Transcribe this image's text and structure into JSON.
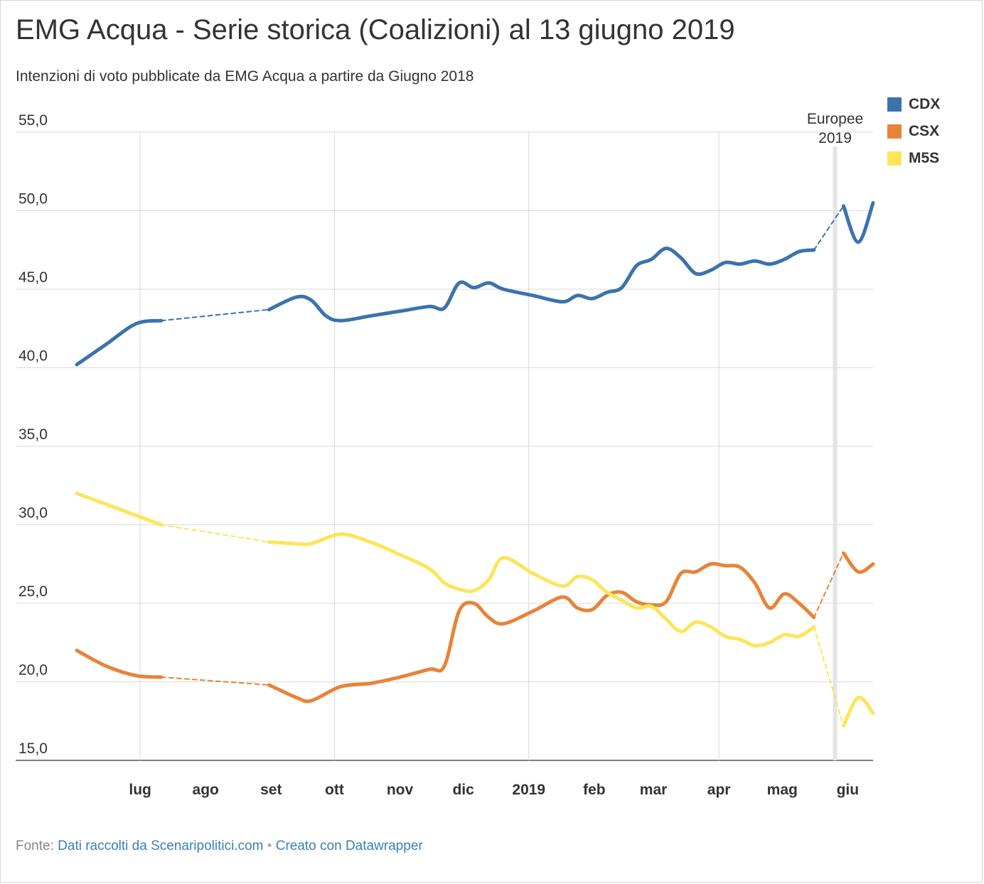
{
  "title": "EMG Acqua - Serie storica (Coalizioni) al 13 giugno 2019",
  "subtitle": "Intenzioni di voto pubblicate da EMG Acqua a partire da Giugno 2018",
  "footer": {
    "prefix": "Fonte: ",
    "source": "Dati raccolti da Scenaripolitici.com",
    "separator": " • ",
    "credit": "Creato con Datawrapper"
  },
  "chart_data": {
    "type": "line",
    "ylim": [
      15,
      55
    ],
    "yticks": [
      15,
      20,
      25,
      30,
      35,
      40,
      45,
      50,
      55
    ],
    "ytick_labels": [
      "15,0",
      "20,0",
      "25,0",
      "30,0",
      "35,0",
      "40,0",
      "45,0",
      "50,0",
      "55,0"
    ],
    "xlim": [
      "2018-06-01",
      "2019-06-13"
    ],
    "xticks": [
      {
        "label": "lug",
        "date": "2018-07-01",
        "gridline": true
      },
      {
        "label": "ago",
        "date": "2018-08-01",
        "gridline": false
      },
      {
        "label": "set",
        "date": "2018-09-01",
        "gridline": false
      },
      {
        "label": "ott",
        "date": "2018-10-01",
        "gridline": true
      },
      {
        "label": "nov",
        "date": "2018-11-01",
        "gridline": false
      },
      {
        "label": "dic",
        "date": "2018-12-01",
        "gridline": false
      },
      {
        "label": "2019",
        "date": "2019-01-01",
        "gridline": true
      },
      {
        "label": "feb",
        "date": "2019-02-01",
        "gridline": false
      },
      {
        "label": "mar",
        "date": "2019-03-01",
        "gridline": false
      },
      {
        "label": "apr",
        "date": "2019-04-01",
        "gridline": true
      },
      {
        "label": "mag",
        "date": "2019-05-01",
        "gridline": false
      },
      {
        "label": "giu",
        "date": "2019-06-01",
        "gridline": false
      }
    ],
    "annotation": {
      "date": "2019-05-26",
      "lines": [
        "Europee",
        "2019"
      ]
    },
    "grid": true,
    "legend": "top-right",
    "series": [
      {
        "name": "CDX",
        "color": "#3a73ae",
        "segments": [
          {
            "style": "solid",
            "points": [
              [
                "2018-06-01",
                40.2
              ],
              [
                "2018-06-15",
                41.5
              ],
              [
                "2018-06-29",
                42.8
              ],
              [
                "2018-07-11",
                43.0
              ]
            ]
          },
          {
            "style": "dashed",
            "points": [
              [
                "2018-07-11",
                43.0
              ],
              [
                "2018-08-31",
                43.7
              ]
            ]
          },
          {
            "style": "solid",
            "points": [
              [
                "2018-08-31",
                43.7
              ],
              [
                "2018-09-13",
                44.5
              ],
              [
                "2018-09-20",
                44.3
              ],
              [
                "2018-09-27",
                43.3
              ],
              [
                "2018-10-04",
                43.0
              ],
              [
                "2018-10-18",
                43.3
              ],
              [
                "2018-11-01",
                43.6
              ],
              [
                "2018-11-15",
                43.9
              ],
              [
                "2018-11-22",
                43.8
              ],
              [
                "2018-11-29",
                45.4
              ],
              [
                "2018-12-06",
                45.1
              ],
              [
                "2018-12-13",
                45.4
              ],
              [
                "2018-12-20",
                45.0
              ],
              [
                "2019-01-03",
                44.6
              ],
              [
                "2019-01-17",
                44.2
              ],
              [
                "2019-01-24",
                44.6
              ],
              [
                "2019-01-31",
                44.4
              ],
              [
                "2019-02-07",
                44.8
              ],
              [
                "2019-02-14",
                45.1
              ],
              [
                "2019-02-21",
                46.5
              ],
              [
                "2019-02-28",
                46.9
              ],
              [
                "2019-03-07",
                47.6
              ],
              [
                "2019-03-14",
                47.0
              ],
              [
                "2019-03-21",
                46.0
              ],
              [
                "2019-03-28",
                46.2
              ],
              [
                "2019-04-04",
                46.7
              ],
              [
                "2019-04-11",
                46.6
              ],
              [
                "2019-04-18",
                46.8
              ],
              [
                "2019-04-25",
                46.6
              ],
              [
                "2019-05-02",
                46.9
              ],
              [
                "2019-05-09",
                47.4
              ],
              [
                "2019-05-16",
                47.5
              ]
            ]
          },
          {
            "style": "dashed",
            "points": [
              [
                "2019-05-16",
                47.5
              ],
              [
                "2019-05-30",
                50.3
              ]
            ]
          },
          {
            "style": "solid",
            "points": [
              [
                "2019-05-30",
                50.3
              ],
              [
                "2019-06-06",
                48.0
              ],
              [
                "2019-06-13",
                50.5
              ]
            ]
          }
        ]
      },
      {
        "name": "CSX",
        "color": "#e8833a",
        "segments": [
          {
            "style": "solid",
            "points": [
              [
                "2018-06-01",
                22.0
              ],
              [
                "2018-06-15",
                21.0
              ],
              [
                "2018-06-29",
                20.4
              ],
              [
                "2018-07-11",
                20.3
              ]
            ]
          },
          {
            "style": "dashed",
            "points": [
              [
                "2018-07-11",
                20.3
              ],
              [
                "2018-08-31",
                19.8
              ]
            ]
          },
          {
            "style": "solid",
            "points": [
              [
                "2018-08-31",
                19.8
              ],
              [
                "2018-09-13",
                19.0
              ],
              [
                "2018-09-20",
                18.8
              ],
              [
                "2018-10-04",
                19.7
              ],
              [
                "2018-10-18",
                19.9
              ],
              [
                "2018-11-01",
                20.3
              ],
              [
                "2018-11-15",
                20.8
              ],
              [
                "2018-11-22",
                21.0
              ],
              [
                "2018-11-29",
                24.5
              ],
              [
                "2018-12-06",
                25.0
              ],
              [
                "2018-12-13",
                24.1
              ],
              [
                "2018-12-20",
                23.7
              ],
              [
                "2019-01-03",
                24.5
              ],
              [
                "2019-01-17",
                25.4
              ],
              [
                "2019-01-24",
                24.7
              ],
              [
                "2019-01-31",
                24.6
              ],
              [
                "2019-02-07",
                25.5
              ],
              [
                "2019-02-14",
                25.7
              ],
              [
                "2019-02-21",
                25.1
              ],
              [
                "2019-02-28",
                24.9
              ],
              [
                "2019-03-07",
                25.1
              ],
              [
                "2019-03-14",
                26.9
              ],
              [
                "2019-03-21",
                27.0
              ],
              [
                "2019-03-28",
                27.5
              ],
              [
                "2019-04-04",
                27.4
              ],
              [
                "2019-04-11",
                27.3
              ],
              [
                "2019-04-18",
                26.3
              ],
              [
                "2019-04-25",
                24.7
              ],
              [
                "2019-05-02",
                25.6
              ],
              [
                "2019-05-09",
                25.0
              ],
              [
                "2019-05-16",
                24.1
              ]
            ]
          },
          {
            "style": "dashed",
            "points": [
              [
                "2019-05-16",
                24.1
              ],
              [
                "2019-05-30",
                28.2
              ]
            ]
          },
          {
            "style": "solid",
            "points": [
              [
                "2019-05-30",
                28.2
              ],
              [
                "2019-06-06",
                27.0
              ],
              [
                "2019-06-13",
                27.5
              ]
            ]
          }
        ]
      },
      {
        "name": "M5S",
        "color": "#fce55a",
        "segments": [
          {
            "style": "solid",
            "points": [
              [
                "2018-06-01",
                32.0
              ],
              [
                "2018-06-15",
                31.3
              ],
              [
                "2018-06-29",
                30.6
              ],
              [
                "2018-07-11",
                30.0
              ]
            ]
          },
          {
            "style": "dashed",
            "points": [
              [
                "2018-07-11",
                30.0
              ],
              [
                "2018-08-31",
                28.9
              ]
            ]
          },
          {
            "style": "solid",
            "points": [
              [
                "2018-08-31",
                28.9
              ],
              [
                "2018-09-13",
                28.8
              ],
              [
                "2018-09-20",
                28.8
              ],
              [
                "2018-10-04",
                29.4
              ],
              [
                "2018-10-18",
                28.9
              ],
              [
                "2018-11-01",
                28.1
              ],
              [
                "2018-11-15",
                27.2
              ],
              [
                "2018-11-22",
                26.3
              ],
              [
                "2018-11-29",
                25.9
              ],
              [
                "2018-12-06",
                25.8
              ],
              [
                "2018-12-13",
                26.5
              ],
              [
                "2018-12-20",
                27.9
              ],
              [
                "2019-01-03",
                26.9
              ],
              [
                "2019-01-17",
                26.1
              ],
              [
                "2019-01-24",
                26.7
              ],
              [
                "2019-01-31",
                26.5
              ],
              [
                "2019-02-07",
                25.7
              ],
              [
                "2019-02-14",
                25.2
              ],
              [
                "2019-02-21",
                24.7
              ],
              [
                "2019-02-28",
                24.8
              ],
              [
                "2019-03-07",
                24.0
              ],
              [
                "2019-03-14",
                23.2
              ],
              [
                "2019-03-21",
                23.8
              ],
              [
                "2019-03-28",
                23.5
              ],
              [
                "2019-04-04",
                22.9
              ],
              [
                "2019-04-11",
                22.7
              ],
              [
                "2019-04-18",
                22.3
              ],
              [
                "2019-04-25",
                22.5
              ],
              [
                "2019-05-02",
                23.0
              ],
              [
                "2019-05-09",
                22.9
              ],
              [
                "2019-05-16",
                23.5
              ]
            ]
          },
          {
            "style": "dashed",
            "points": [
              [
                "2019-05-16",
                23.5
              ],
              [
                "2019-05-30",
                17.2
              ]
            ]
          },
          {
            "style": "solid",
            "points": [
              [
                "2019-05-30",
                17.2
              ],
              [
                "2019-06-06",
                19.0
              ],
              [
                "2019-06-13",
                18.0
              ]
            ]
          }
        ]
      }
    ]
  }
}
